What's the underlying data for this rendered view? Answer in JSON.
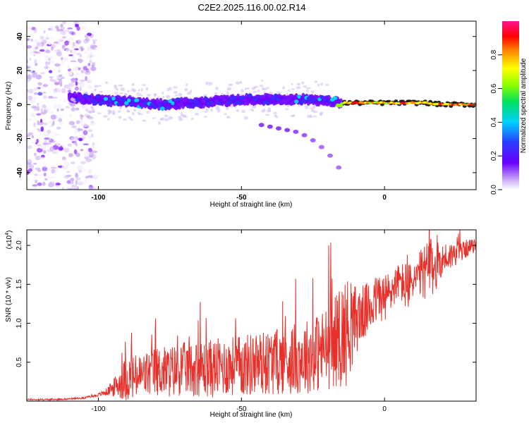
{
  "figure": {
    "title": "C2E2.2025.116.00.02.R14"
  },
  "colors": {
    "line": "#e8302a",
    "ridge_core": "#e0245e",
    "ridge_mid": "#3fe0d0",
    "ridge_low": "#3b2bff",
    "scatter": "#8a2be2"
  },
  "colorbar": {
    "label": "Normalized spectral amplitude",
    "ticks": [
      "0.0",
      "0.2",
      "0.4",
      "0.6",
      "0.8"
    ],
    "tick_values": [
      0.0,
      0.2,
      0.4,
      0.6,
      0.8
    ],
    "range": [
      0,
      1
    ],
    "colormap": "rainbow (white-violet-blue-cyan-green-yellow-red-magenta)"
  },
  "chart_data": [
    {
      "type": "heatmap",
      "xlabel": "Height of straight line (km)",
      "ylabel": "Frequency (Hz)",
      "xlim": [
        -125,
        32
      ],
      "ylim": [
        -50,
        49
      ],
      "x_ticks": [
        -100,
        -50,
        0
      ],
      "x_tick_labels": [
        "-100",
        "-50",
        "0"
      ],
      "y_ticks": [
        -40,
        -20,
        0,
        20,
        40
      ],
      "y_tick_labels": [
        "-40",
        "-20",
        "0",
        "20",
        "40"
      ],
      "grid": false,
      "ridge": {
        "x": [
          -110,
          -105,
          -100,
          -95,
          -90,
          -85,
          -80,
          -75,
          -70,
          -65,
          -60,
          -55,
          -50,
          -45,
          -40,
          -35,
          -30,
          -25,
          -20,
          -15,
          -10,
          -5,
          0,
          5,
          10,
          15,
          20,
          25,
          30
        ],
        "y": [
          5,
          3,
          3,
          2,
          2,
          1,
          0,
          0,
          1,
          1,
          2,
          2,
          3,
          3,
          3,
          3,
          3,
          3,
          2,
          1,
          1,
          1,
          1,
          1,
          1,
          1,
          0,
          0,
          0
        ],
        "amplitude": [
          0.15,
          0.25,
          0.35,
          0.35,
          0.4,
          0.35,
          0.35,
          0.35,
          0.35,
          0.3,
          0.3,
          0.3,
          0.3,
          0.3,
          0.3,
          0.3,
          0.35,
          0.35,
          0.3,
          0.7,
          0.9,
          0.8,
          0.8,
          0.85,
          0.8,
          0.8,
          0.85,
          0.9,
          0.9
        ]
      },
      "secondary_track": {
        "x": [
          -43,
          -40,
          -37,
          -34,
          -31,
          -28,
          -25,
          -22,
          -19,
          -16
        ],
        "y": [
          -12,
          -13,
          -14,
          -15,
          -16,
          -18,
          -21,
          -25,
          -30,
          -37
        ],
        "amplitude": [
          0.15,
          0.15,
          0.15,
          0.15,
          0.12,
          0.1,
          0.08,
          0.06,
          0.05,
          0.05
        ]
      },
      "noise_region_x": [
        -125,
        -105
      ]
    },
    {
      "type": "line",
      "xlabel": "Height of straight line (km)",
      "ylabel": "SNR (10 * v/v)",
      "y_multiplier_label": "(x10",
      "y_multiplier_exp": "4",
      "y_multiplier_close": ")",
      "xlim": [
        -125,
        32
      ],
      "ylim": [
        0,
        2.2
      ],
      "x_ticks": [
        -100,
        -50,
        0
      ],
      "x_tick_labels": [
        "-100",
        "-50",
        "0"
      ],
      "y_ticks": [
        0.5,
        1.0,
        1.5,
        2.0
      ],
      "y_tick_labels": [
        "0.5",
        "1.0",
        "1.5",
        "2.0"
      ],
      "grid": false,
      "series": [
        {
          "x": [
            -125,
            -115,
            -105,
            -100,
            -97,
            -95,
            -93,
            -90,
            -87,
            -85,
            -80,
            -75,
            -70,
            -65,
            -60,
            -55,
            -50,
            -45,
            -40,
            -35,
            -30,
            -25,
            -20,
            -17,
            -15,
            -13,
            -10,
            -7,
            -5,
            -2,
            0,
            3,
            5,
            8,
            10,
            12,
            15,
            18,
            20,
            22,
            25,
            28,
            30,
            32
          ],
          "y": [
            0.02,
            0.02,
            0.04,
            0.08,
            0.12,
            0.16,
            0.22,
            0.3,
            0.3,
            0.32,
            0.38,
            0.38,
            0.42,
            0.42,
            0.42,
            0.45,
            0.45,
            0.48,
            0.5,
            0.52,
            0.55,
            0.6,
            0.68,
            0.78,
            0.85,
            0.9,
            1.05,
            1.15,
            1.2,
            1.35,
            1.3,
            1.45,
            1.55,
            1.45,
            1.55,
            1.6,
            1.7,
            1.72,
            1.82,
            1.85,
            1.9,
            1.95,
            1.98,
            2.0
          ],
          "spread": [
            0.01,
            0.01,
            0.01,
            0.02,
            0.05,
            0.1,
            0.18,
            0.3,
            0.3,
            0.3,
            0.32,
            0.34,
            0.34,
            0.36,
            0.38,
            0.38,
            0.4,
            0.42,
            0.42,
            0.44,
            0.46,
            0.5,
            0.55,
            0.6,
            0.7,
            0.7,
            0.45,
            0.35,
            0.35,
            0.3,
            0.35,
            0.25,
            0.22,
            0.35,
            0.2,
            0.3,
            0.4,
            0.35,
            0.2,
            0.2,
            0.15,
            0.12,
            0.1,
            0.08
          ]
        }
      ]
    }
  ]
}
